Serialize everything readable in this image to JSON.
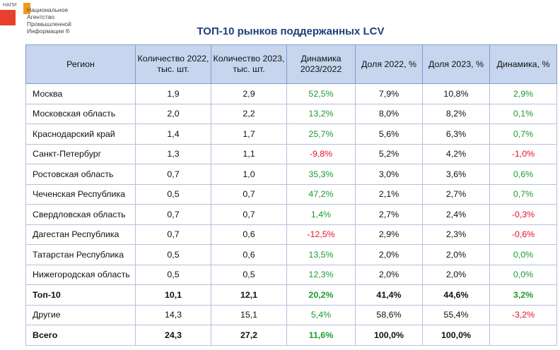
{
  "logo": {
    "abbr": "НАПИ",
    "lines": [
      "Национальное",
      "Агентство",
      "Промышленной",
      "Информации ®"
    ]
  },
  "title": "ТОП-10 рынков поддержанных LCV",
  "headers": [
    "Регион",
    "Количество 2022, тыс. шт.",
    "Количество 2023, тыс. шт.",
    "Динамика 2023/2022",
    "Доля 2022, %",
    "Доля 2023, %",
    "Динамика, %"
  ],
  "rows": [
    {
      "region": "Москва",
      "q2022": "1,9",
      "q2023": "2,9",
      "dyn": "52,5%",
      "s2022": "7,9%",
      "s2023": "10,8%",
      "sdyn": "2,9%",
      "bold": false
    },
    {
      "region": "Московская область",
      "q2022": "2,0",
      "q2023": "2,2",
      "dyn": "13,2%",
      "s2022": "8,0%",
      "s2023": "8,2%",
      "sdyn": "0,1%",
      "bold": false
    },
    {
      "region": "Краснодарский край",
      "q2022": "1,4",
      "q2023": "1,7",
      "dyn": "25,7%",
      "s2022": "5,6%",
      "s2023": "6,3%",
      "sdyn": "0,7%",
      "bold": false
    },
    {
      "region": "Санкт-Петербург",
      "q2022": "1,3",
      "q2023": "1,1",
      "dyn": "-9,8%",
      "s2022": "5,2%",
      "s2023": "4,2%",
      "sdyn": "-1,0%",
      "bold": false
    },
    {
      "region": "Ростовская область",
      "q2022": "0,7",
      "q2023": "1,0",
      "dyn": "35,3%",
      "s2022": "3,0%",
      "s2023": "3,6%",
      "sdyn": "0,6%",
      "bold": false
    },
    {
      "region": "Чеченская Республика",
      "q2022": "0,5",
      "q2023": "0,7",
      "dyn": "47,2%",
      "s2022": "2,1%",
      "s2023": "2,7%",
      "sdyn": "0,7%",
      "bold": false
    },
    {
      "region": "Свердловская область",
      "q2022": "0,7",
      "q2023": "0,7",
      "dyn": "1,4%",
      "s2022": "2,7%",
      "s2023": "2,4%",
      "sdyn": "-0,3%",
      "bold": false
    },
    {
      "region": "Дагестан Республика",
      "q2022": "0,7",
      "q2023": "0,6",
      "dyn": "-12,5%",
      "s2022": "2,9%",
      "s2023": "2,3%",
      "sdyn": "-0,6%",
      "bold": false
    },
    {
      "region": "Татарстан Республика",
      "q2022": "0,5",
      "q2023": "0,6",
      "dyn": "13,5%",
      "s2022": "2,0%",
      "s2023": "2,0%",
      "sdyn": "0,0%",
      "bold": false
    },
    {
      "region": "Нижегородская область",
      "q2022": "0,5",
      "q2023": "0,5",
      "dyn": "12,3%",
      "s2022": "2,0%",
      "s2023": "2,0%",
      "sdyn": "0,0%",
      "bold": false
    },
    {
      "region": "Топ-10",
      "q2022": "10,1",
      "q2023": "12,1",
      "dyn": "20,2%",
      "s2022": "41,4%",
      "s2023": "44,6%",
      "sdyn": "3,2%",
      "bold": true
    },
    {
      "region": "Другие",
      "q2022": "14,3",
      "q2023": "15,1",
      "dyn": "5,4%",
      "s2022": "58,6%",
      "s2023": "55,4%",
      "sdyn": "-3,2%",
      "bold": false
    },
    {
      "region": "Всего",
      "q2022": "24,3",
      "q2023": "27,2",
      "dyn": "11,6%",
      "s2022": "100,0%",
      "s2023": "100,0%",
      "sdyn": "",
      "bold": true
    }
  ],
  "colors": {
    "positive": "#1d9a2f",
    "negative": "#e0142b",
    "header_bg": "#c7d6ee",
    "title": "#1f3f7a"
  }
}
